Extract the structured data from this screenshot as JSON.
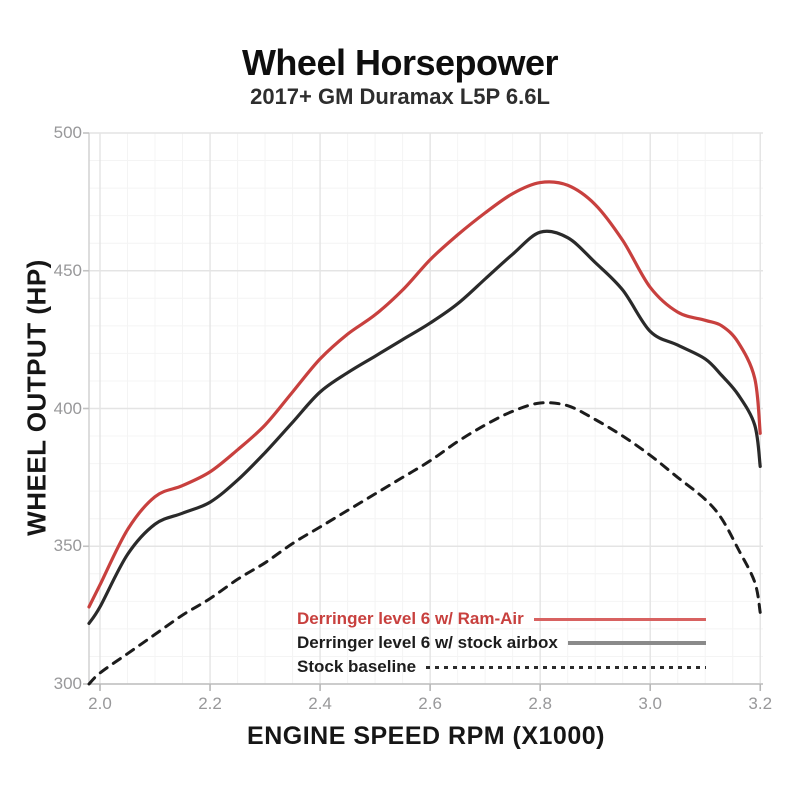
{
  "header": {
    "title": "Wheel Horsepower",
    "subtitle": "2017+ GM Duramax L5P 6.6L"
  },
  "chart_data": {
    "type": "line",
    "title": "Wheel Horsepower",
    "subtitle": "2017+ GM Duramax L5P 6.6L",
    "xlabel": "ENGINE SPEED RPM (X1000)",
    "ylabel": "WHEEL OUTPUT (HP)",
    "xlim": [
      1.98,
      3.205
    ],
    "ylim": [
      300,
      500
    ],
    "x_ticks": [
      2.0,
      2.2,
      2.4,
      2.6,
      2.8,
      3.0,
      3.2
    ],
    "x_tick_labels": [
      "2.0",
      "2.2",
      "2.4",
      "2.6",
      "2.8",
      "3.0",
      "3.2"
    ],
    "y_ticks": [
      300,
      350,
      400,
      450,
      500
    ],
    "y_tick_labels": [
      "300",
      "350",
      "400",
      "450",
      "500"
    ],
    "grid": {
      "major": true,
      "minor": true,
      "x_minor_step": 0.05,
      "y_minor_step": 10,
      "major_color": "#e4e4e4",
      "minor_color": "#f4f4f4"
    },
    "legend_position": "inside-bottom-right",
    "x": [
      1.98,
      2.0,
      2.05,
      2.1,
      2.15,
      2.2,
      2.25,
      2.3,
      2.35,
      2.4,
      2.45,
      2.5,
      2.55,
      2.6,
      2.65,
      2.7,
      2.75,
      2.8,
      2.85,
      2.9,
      2.95,
      3.0,
      3.05,
      3.1,
      3.13,
      3.16,
      3.19,
      3.2
    ],
    "series": [
      {
        "name": "Derringer level 6 w/ Ram-Air",
        "color": "#c8403e",
        "style": "solid",
        "values": [
          328,
          336,
          356,
          368,
          372,
          377,
          385,
          394,
          406,
          418,
          427,
          434,
          443,
          454,
          463,
          471,
          478,
          482,
          481,
          474,
          461,
          444,
          435,
          432,
          430,
          424,
          411,
          391
        ]
      },
      {
        "name": "Derringer level 6 w/ stock airbox",
        "color": "#2a2a2a",
        "style": "solid",
        "values": [
          322,
          328,
          347,
          358,
          362,
          366,
          374,
          384,
          395,
          406,
          413,
          419,
          425,
          431,
          438,
          447,
          456,
          464,
          462,
          453,
          443,
          428,
          423,
          418,
          412,
          405,
          394,
          379
        ]
      },
      {
        "name": "Stock baseline",
        "color": "#1c1c1c",
        "style": "dashed",
        "values": [
          300,
          304,
          311,
          318,
          325,
          331,
          338,
          344,
          351,
          357,
          363,
          369,
          375,
          381,
          388,
          394,
          399,
          402,
          401,
          396,
          390,
          383,
          375,
          367,
          360,
          349,
          337,
          326
        ]
      }
    ]
  }
}
